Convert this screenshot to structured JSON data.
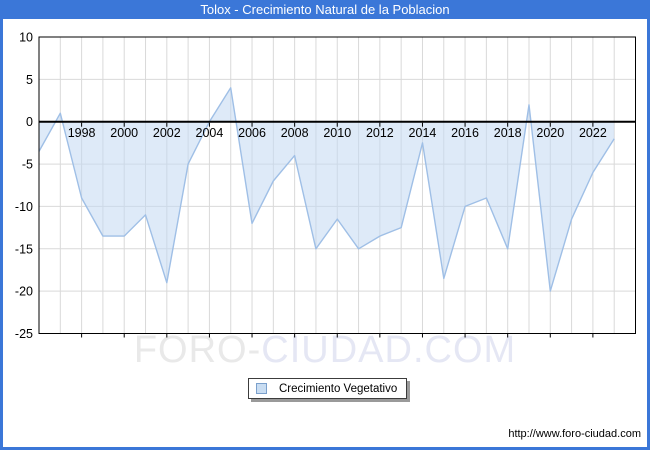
{
  "window": {
    "title": "Tolox - Crecimiento Natural de la Poblacion"
  },
  "colors": {
    "accent_blue": "#3b77d8",
    "series_line": "#9fbfe6",
    "series_fill": "#c3d9f2",
    "gridline": "#d9d9d9",
    "axis": "#000000",
    "watermark_gray": "#e9e9e9",
    "watermark_lavender": "#e5e7f4"
  },
  "chart_data": {
    "type": "area",
    "title": "Tolox - Crecimiento Natural de la Poblacion",
    "xlabel": "",
    "ylabel": "",
    "xlim": [
      1996,
      2024
    ],
    "ylim": [
      -25,
      10
    ],
    "grid": "on",
    "baseline": 0,
    "legend_position": "bottom-center",
    "x": [
      1996,
      1997,
      1998,
      1999,
      2000,
      2001,
      2002,
      2003,
      2004,
      2005,
      2006,
      2007,
      2008,
      2009,
      2010,
      2011,
      2012,
      2013,
      2014,
      2015,
      2016,
      2017,
      2018,
      2019,
      2020,
      2021,
      2022,
      2023
    ],
    "series": [
      {
        "name": "Crecimiento Vegetativo",
        "values": [
          -3.5,
          1,
          -9,
          -13.5,
          -13.5,
          -11,
          -19,
          -5,
          0,
          4,
          -12,
          -7,
          -4,
          -15,
          -11.5,
          -15,
          -13.5,
          -12.5,
          -2.5,
          -18.5,
          -10,
          -9,
          -15,
          2,
          -20,
          -11.5,
          -6,
          -2
        ]
      }
    ],
    "y_ticks": [
      10,
      5,
      0,
      -5,
      -10,
      -15,
      -20,
      -25
    ],
    "y_tick_labels": [
      "10",
      "5",
      "0",
      "-5",
      "-10",
      "-15",
      "-20",
      "-25"
    ],
    "x_tick_years": [
      1998,
      2000,
      2002,
      2004,
      2006,
      2008,
      2010,
      2012,
      2014,
      2016,
      2018,
      2020,
      2022
    ],
    "x_tick_labels": [
      "1998",
      "2000",
      "2002",
      "2004",
      "2006",
      "2008",
      "2010",
      "2012",
      "2014",
      "2016",
      "2018",
      "2020",
      "2022"
    ]
  },
  "legend": {
    "label": "Crecimiento Vegetativo"
  },
  "watermark": {
    "part1": "FORO-",
    "part2": "CIUDAD.COM"
  },
  "footer": {
    "url": "http://www.foro-ciudad.com"
  }
}
